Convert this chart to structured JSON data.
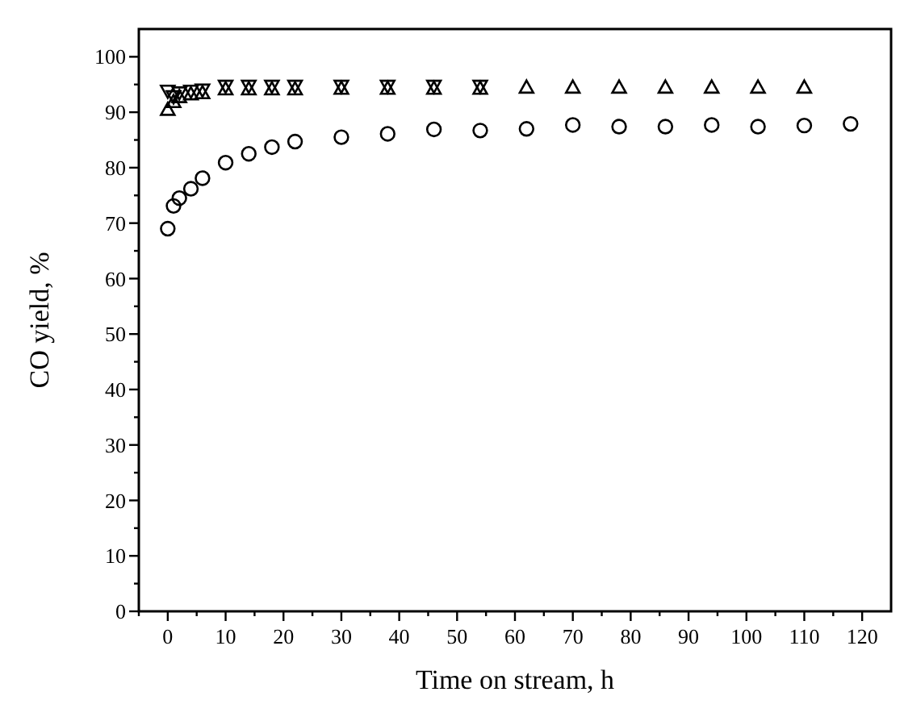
{
  "chart_data": {
    "type": "scatter",
    "xlabel": "Time on stream, h",
    "ylabel": "CO yield, %",
    "xlim": [
      -5,
      125
    ],
    "ylim": [
      0,
      105
    ],
    "xticks": [
      {
        "value": -5,
        "label": null
      },
      0,
      {
        "value": 5,
        "label": null
      },
      10,
      {
        "value": 15,
        "label": null
      },
      20,
      {
        "value": 25,
        "label": null
      },
      30,
      {
        "value": 35,
        "label": null
      },
      40,
      {
        "value": 45,
        "label": null
      },
      50,
      {
        "value": 55,
        "label": null
      },
      60,
      {
        "value": 65,
        "label": null
      },
      70,
      {
        "value": 75,
        "label": null
      },
      80,
      {
        "value": 85,
        "label": null
      },
      90,
      {
        "value": 95,
        "label": null
      },
      100,
      {
        "value": 105,
        "label": null
      },
      110,
      {
        "value": 115,
        "label": null
      },
      120
    ],
    "yticks": [
      0,
      {
        "value": 5,
        "label": null
      },
      10,
      {
        "value": 15,
        "label": null
      },
      20,
      {
        "value": 25,
        "label": null
      },
      30,
      {
        "value": 35,
        "label": null
      },
      40,
      {
        "value": 45,
        "label": null
      },
      50,
      {
        "value": 55,
        "label": null
      },
      60,
      {
        "value": 65,
        "label": null
      },
      70,
      {
        "value": 75,
        "label": null
      },
      80,
      {
        "value": 85,
        "label": null
      },
      90,
      {
        "value": 95,
        "label": null
      },
      100
    ],
    "grid": false,
    "series": [
      {
        "color": "#000000",
        "marker": "circle",
        "x": [
          0,
          1,
          2,
          4,
          6,
          10,
          14,
          18,
          22,
          30,
          38,
          46,
          54,
          62,
          70,
          78,
          86,
          94,
          102,
          110,
          118
        ],
        "values": [
          69.0,
          73.1,
          74.5,
          76.2,
          78.1,
          80.9,
          82.5,
          83.7,
          84.7,
          85.5,
          86.1,
          86.9,
          86.7,
          87.0,
          87.7,
          87.4,
          87.4,
          87.7,
          87.4,
          87.6,
          87.9
        ]
      },
      {
        "color": "#000000",
        "marker": "triangle",
        "x": [
          0,
          1,
          2,
          4,
          6,
          10,
          14,
          18,
          22,
          30,
          38,
          46,
          54,
          62,
          70,
          78,
          86,
          94,
          102,
          110
        ],
        "values": [
          90.5,
          91.9,
          92.8,
          93.3,
          93.5,
          94.2,
          94.2,
          94.2,
          94.2,
          94.3,
          94.3,
          94.3,
          94.3,
          94.5,
          94.5,
          94.5,
          94.5,
          94.5,
          94.5,
          94.5
        ]
      },
      {
        "color": "#000000",
        "marker": "triangle-down",
        "x": [
          0,
          1,
          2,
          4,
          6,
          10,
          14,
          18,
          22,
          30,
          38,
          46,
          54
        ],
        "values": [
          93.8,
          92.8,
          93.5,
          93.8,
          94.0,
          94.7,
          94.7,
          94.7,
          94.7,
          94.7,
          94.7,
          94.7,
          94.7
        ]
      }
    ]
  }
}
